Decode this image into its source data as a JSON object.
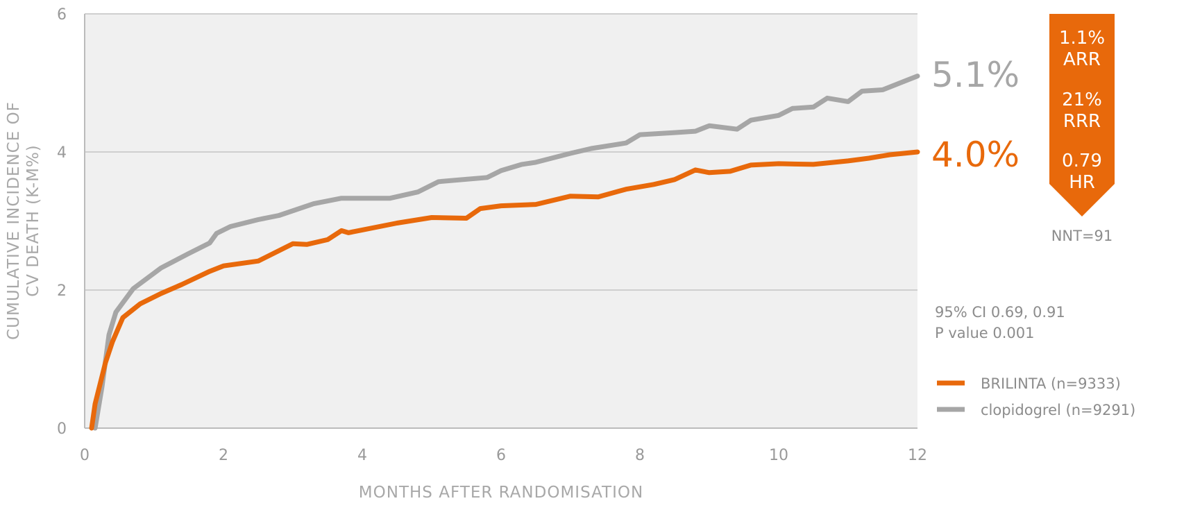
{
  "chart_data": {
    "type": "line",
    "title": "",
    "xlabel": "MONTHS AFTER RANDOMISATION",
    "ylabel_lines": [
      "CUMULATIVE INCIDENCE OF",
      "CV DEATH (K-M%)"
    ],
    "xlim": [
      0,
      12
    ],
    "ylim": [
      0,
      6
    ],
    "x_ticks": [
      "0",
      "2",
      "4",
      "6",
      "8",
      "10",
      "12"
    ],
    "y_ticks": [
      "0",
      "2",
      "4",
      "6"
    ],
    "grid": "horizontal",
    "plot_background": "#f0f0f0",
    "legend_position": "right",
    "series": [
      {
        "name": "BRILINTA (n=9333)",
        "color": "#e8690b",
        "end_label": "4.0%",
        "x": [
          0.1,
          0.15,
          0.3,
          0.4,
          0.55,
          0.8,
          1.1,
          1.4,
          1.8,
          2.0,
          2.5,
          2.8,
          3.0,
          3.2,
          3.5,
          3.7,
          3.8,
          4.0,
          4.5,
          5.0,
          5.5,
          5.7,
          6.0,
          6.5,
          7.0,
          7.4,
          7.8,
          8.2,
          8.5,
          8.8,
          9.0,
          9.3,
          9.6,
          10.0,
          10.5,
          11.0,
          11.3,
          11.6,
          12.0
        ],
        "y": [
          0.0,
          0.35,
          0.95,
          1.25,
          1.6,
          1.8,
          1.95,
          2.08,
          2.27,
          2.35,
          2.42,
          2.57,
          2.67,
          2.66,
          2.73,
          2.86,
          2.83,
          2.87,
          2.97,
          3.05,
          3.04,
          3.18,
          3.22,
          3.24,
          3.36,
          3.35,
          3.46,
          3.53,
          3.6,
          3.74,
          3.7,
          3.72,
          3.81,
          3.83,
          3.82,
          3.87,
          3.91,
          3.96,
          4.0
        ]
      },
      {
        "name": "clopidogrel (n=9291)",
        "color": "#a6a6a6",
        "end_label": "5.1%",
        "x": [
          0.15,
          0.25,
          0.35,
          0.45,
          0.7,
          1.1,
          1.5,
          1.8,
          1.9,
          2.1,
          2.5,
          2.8,
          3.3,
          3.7,
          4.0,
          4.4,
          4.8,
          5.1,
          5.8,
          6.0,
          6.3,
          6.5,
          7.0,
          7.3,
          7.8,
          8.0,
          8.5,
          8.8,
          9.0,
          9.4,
          9.6,
          10.0,
          10.2,
          10.5,
          10.7,
          11.0,
          11.2,
          11.5,
          11.8,
          12.0
        ],
        "y": [
          0.0,
          0.6,
          1.35,
          1.68,
          2.02,
          2.32,
          2.53,
          2.68,
          2.82,
          2.92,
          3.02,
          3.08,
          3.25,
          3.33,
          3.33,
          3.33,
          3.42,
          3.57,
          3.63,
          3.73,
          3.82,
          3.85,
          3.98,
          4.05,
          4.13,
          4.25,
          4.28,
          4.3,
          4.38,
          4.33,
          4.46,
          4.53,
          4.63,
          4.65,
          4.78,
          4.73,
          4.88,
          4.9,
          5.02,
          5.1
        ]
      }
    ]
  },
  "badge": {
    "arr_value": "1.1%",
    "arr_label": "ARR",
    "rrr_value": "21%",
    "rrr_label": "RRR",
    "hr_value": "0.79",
    "hr_label": "HR",
    "color": "#e8690b"
  },
  "nnt": "NNT=91",
  "stats": {
    "ci": "95% CI 0.69, 0.91",
    "p_value": "P value 0.001"
  },
  "legend": [
    {
      "label": "BRILINTA (n=9333)",
      "color": "#e8690b"
    },
    {
      "label": "clopidogrel (n=9291)",
      "color": "#a6a6a6"
    }
  ]
}
